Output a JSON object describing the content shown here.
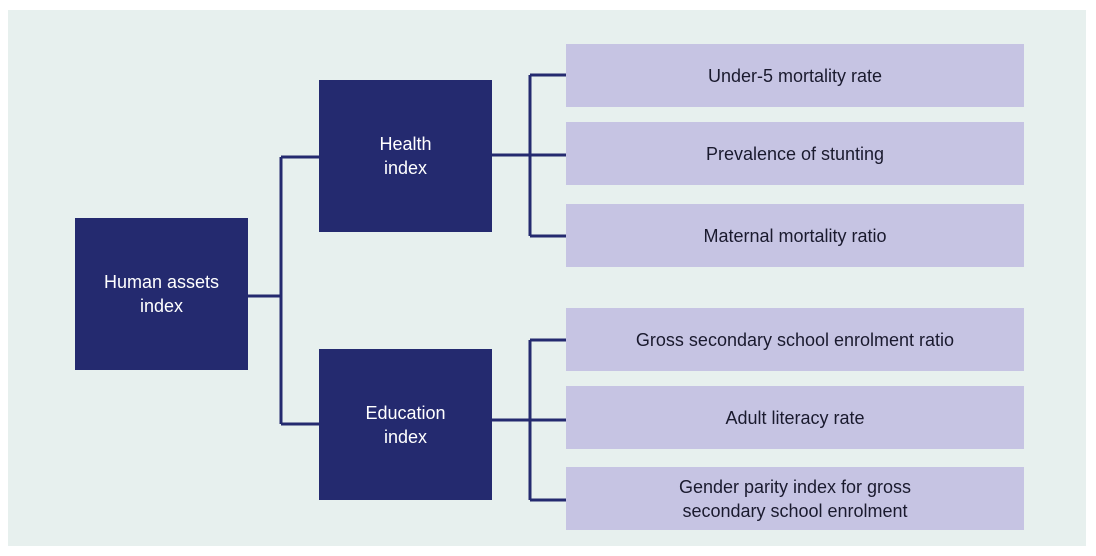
{
  "nodes": [
    {
      "label": "Human assets index"
    },
    {
      "label": "Health index"
    },
    {
      "label": "Education index"
    },
    {
      "label": "Under-5 mortality rate"
    },
    {
      "label": "Prevalence of stunting"
    },
    {
      "label": "Maternal mortality ratio"
    },
    {
      "label": "Gross secondary school enrolment ratio"
    },
    {
      "label": "Adult literacy rate"
    },
    {
      "label": "Gender parity index for gross secondary school enrolment"
    }
  ]
}
